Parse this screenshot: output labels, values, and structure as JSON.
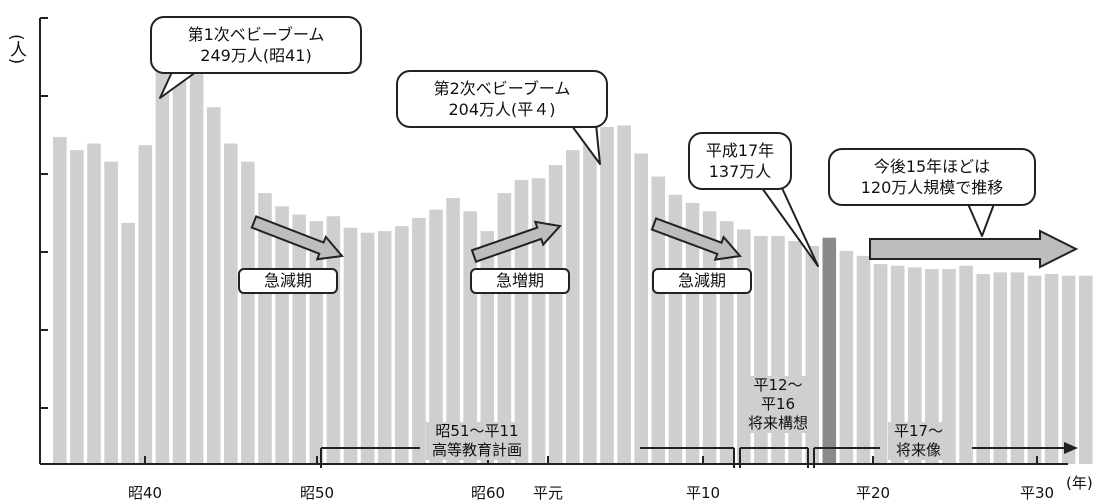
{
  "y_axis_label": "(人)",
  "x_unit_label": "(年)",
  "callouts": {
    "boom1": {
      "line1": "第1次ベビーブーム",
      "line2": "249万人(昭41)"
    },
    "boom2": {
      "line1": "第2次ベビーブーム",
      "line2": "204万人(平４)"
    },
    "h17": {
      "line1": "平成17年",
      "line2": "137万人"
    },
    "future": {
      "line1": "今後15年ほどは",
      "line2": "120万人規模で推移"
    }
  },
  "periods": [
    "急減期",
    "急増期",
    "急減期"
  ],
  "plans": {
    "p1": {
      "line1": "昭51～平11",
      "line2": "高等教育計画"
    },
    "p2": {
      "line1": "平12～",
      "line2": "平16",
      "line3": "将来構想"
    },
    "p3": {
      "line1": "平17～",
      "line2": "将来像"
    }
  },
  "colors": {
    "bar": "#cfcfcf",
    "highlight_bar": "#8a8a8a",
    "arrow": "#bdbdbd"
  },
  "chart_data": {
    "type": "bar",
    "categories": [
      "昭35",
      "昭36",
      "昭37",
      "昭38",
      "昭39",
      "昭40",
      "昭41",
      "昭42",
      "昭43",
      "昭44",
      "昭45",
      "昭46",
      "昭47",
      "昭48",
      "昭49",
      "昭50",
      "昭51",
      "昭52",
      "昭53",
      "昭54",
      "昭55",
      "昭56",
      "昭57",
      "昭58",
      "昭59",
      "昭60",
      "昭61",
      "昭62",
      "昭63",
      "平元",
      "平2",
      "平3",
      "平4",
      "平5",
      "平6",
      "平7",
      "平8",
      "平9",
      "平10",
      "平11",
      "平12",
      "平13",
      "平14",
      "平15",
      "平16",
      "平17",
      "平18",
      "平19",
      "平20",
      "平21",
      "平22",
      "平23",
      "平24",
      "平25",
      "平26",
      "平27",
      "平28",
      "平29",
      "平30",
      "平31",
      "平32"
    ],
    "values": [
      198,
      190,
      194,
      183,
      146,
      193,
      249,
      242,
      236,
      216,
      194,
      183,
      164,
      156,
      151,
      147,
      150,
      143,
      140,
      141,
      144,
      149,
      154,
      161,
      153,
      141,
      164,
      172,
      173,
      181,
      190,
      196,
      204,
      205,
      188,
      174,
      163,
      158,
      153,
      147,
      142,
      138,
      138,
      135,
      132,
      137,
      129,
      126,
      121,
      120,
      119,
      118,
      118,
      120,
      115,
      116,
      116,
      114,
      115,
      114,
      114
    ],
    "highlight_category": "平17",
    "x_tick_labels": [
      "昭40",
      "昭50",
      "昭60",
      "平元",
      "平10",
      "平20",
      "平30"
    ],
    "xlabel": "(年)",
    "ylabel": "(人)",
    "ylim": [
      0,
      270
    ]
  }
}
